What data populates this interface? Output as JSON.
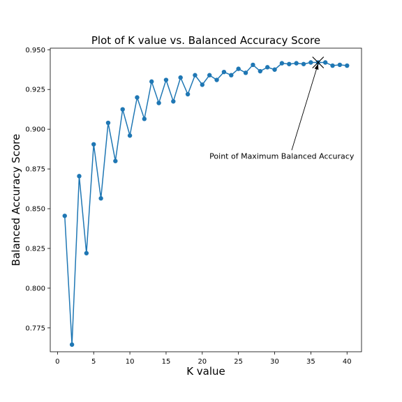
{
  "chart_data": {
    "type": "line",
    "title": "Plot of K value vs. Balanced Accuracy Score",
    "xlabel": "K value",
    "ylabel": "Balanced Accuracy Score",
    "xlim": [
      -1,
      42
    ],
    "ylim": [
      0.76,
      0.951
    ],
    "xticks": [
      0,
      5,
      10,
      15,
      20,
      25,
      30,
      35,
      40
    ],
    "xtick_labels": [
      "0",
      "5",
      "10",
      "15",
      "20",
      "25",
      "30",
      "35",
      "40"
    ],
    "yticks": [
      0.775,
      0.8,
      0.825,
      0.85,
      0.875,
      0.9,
      0.925,
      0.95
    ],
    "ytick_labels": [
      "0.775",
      "0.800",
      "0.825",
      "0.850",
      "0.875",
      "0.900",
      "0.925",
      "0.950"
    ],
    "grid": false,
    "series": [
      {
        "color": "#1f77b4",
        "marker": "circle",
        "x": [
          1,
          2,
          3,
          4,
          5,
          6,
          7,
          8,
          9,
          10,
          11,
          12,
          13,
          14,
          15,
          16,
          17,
          18,
          19,
          20,
          21,
          22,
          23,
          24,
          25,
          26,
          27,
          28,
          29,
          30,
          31,
          32,
          33,
          34,
          35,
          36,
          37,
          38,
          39,
          40
        ],
        "y": [
          0.8455,
          0.7645,
          0.8705,
          0.822,
          0.8905,
          0.8565,
          0.904,
          0.88,
          0.9125,
          0.896,
          0.92,
          0.9065,
          0.93,
          0.9165,
          0.931,
          0.9175,
          0.9325,
          0.922,
          0.934,
          0.928,
          0.934,
          0.931,
          0.936,
          0.934,
          0.938,
          0.9355,
          0.9405,
          0.9365,
          0.939,
          0.9375,
          0.9415,
          0.941,
          0.9415,
          0.941,
          0.942,
          0.942,
          0.942,
          0.94,
          0.9405,
          0.94
        ]
      }
    ],
    "highlight": {
      "x": 36,
      "y": 0.942,
      "marker": "x",
      "color": "#000000"
    },
    "annotation": {
      "text": "Point of Maximum Balanced Accuracy",
      "xy": [
        36,
        0.942
      ],
      "xytext": [
        21,
        0.8815
      ]
    }
  }
}
